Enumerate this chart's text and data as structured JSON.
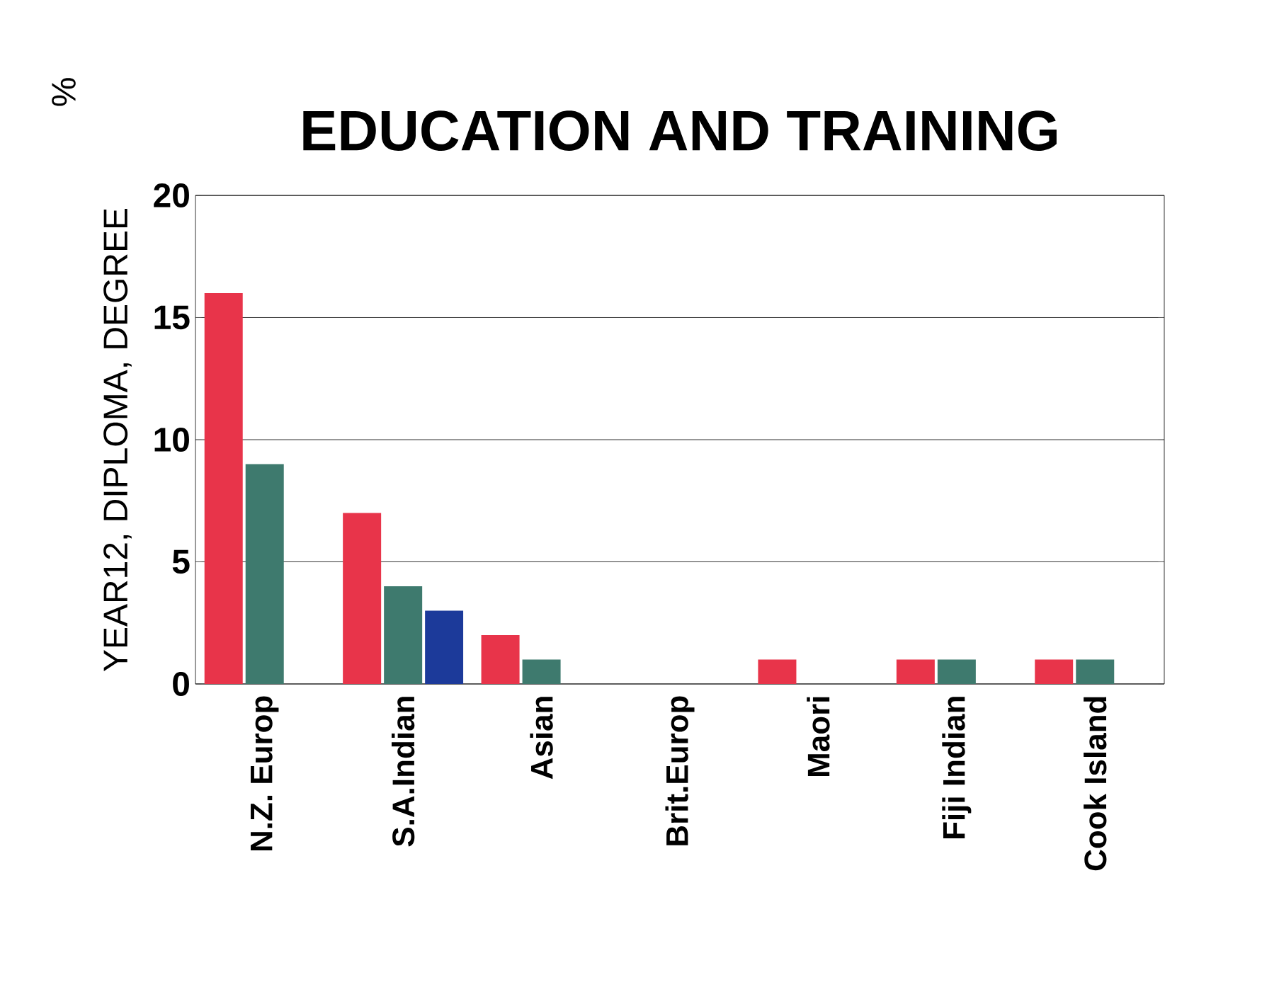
{
  "chart_data": {
    "type": "bar",
    "title": "EDUCATION AND TRAINING",
    "ylabel": "YEAR12, DIPLOMA, DEGREE",
    "categories": [
      "N.Z. Europ",
      "S.A.Indian",
      "Asian",
      "Brit.Europ",
      "Maori",
      "Fiji Indian",
      "Cook Island"
    ],
    "series": [
      {
        "color": "#e8344a",
        "values": [
          16,
          7,
          2,
          0,
          1,
          1,
          1
        ]
      },
      {
        "color": "#3e7a6e",
        "values": [
          9,
          4,
          1,
          0,
          0,
          1,
          1
        ]
      },
      {
        "color": "#1c3a9a",
        "values": [
          null,
          3,
          null,
          null,
          null,
          null,
          null
        ]
      }
    ],
    "ylim": [
      0,
      20
    ],
    "yticks": [
      0,
      5,
      10,
      15,
      20
    ],
    "grid": "y",
    "annotations": [
      "%"
    ]
  }
}
